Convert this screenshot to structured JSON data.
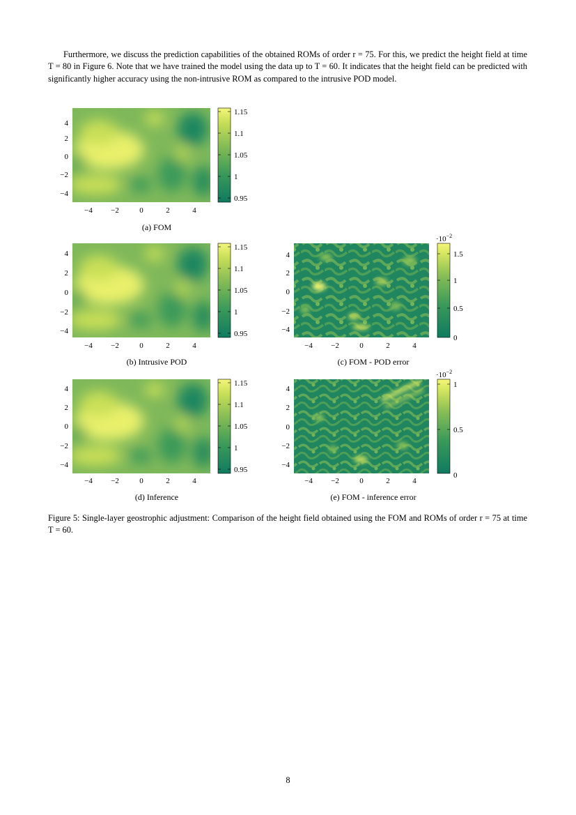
{
  "paragraph": "Furthermore, we discuss the prediction capabilities of the obtained ROMs of order r = 75. For this, we predict the height field at time T = 80 in Figure 6. Note that we have trained the model using the data up to T = 60. It indicates that the height field can be predicted with significantly higher accuracy using the non-intrusive ROM as compared to the intrusive POD model.",
  "colormap": [
    "#0f7a60",
    "#3a9a5a",
    "#86bd55",
    "#c9df57",
    "#f4f67a"
  ],
  "panels": [
    {
      "id": "fom",
      "caption": "(a) FOM",
      "kind": "field",
      "axis_ticks_x": [
        "−4",
        "−2",
        "0",
        "2",
        "4"
      ],
      "axis_ticks_y": [
        "4",
        "2",
        "0",
        "−2",
        "−4"
      ],
      "colorbar_ticks": [
        "1.15",
        "1.1",
        "1.05",
        "1",
        "0.95"
      ],
      "colorbar_range": [
        0.94,
        1.16
      ]
    },
    {
      "id": "intrusive-pod",
      "caption": "(b) Intrusive POD",
      "kind": "field",
      "axis_ticks_x": [
        "−4",
        "−2",
        "0",
        "2",
        "4"
      ],
      "axis_ticks_y": [
        "4",
        "2",
        "0",
        "−2",
        "−4"
      ],
      "colorbar_ticks": [
        "1.15",
        "1.1",
        "1.05",
        "1",
        "0.95"
      ],
      "colorbar_range": [
        0.94,
        1.16
      ]
    },
    {
      "id": "pod-error",
      "caption": "(c) FOM - POD error",
      "kind": "error",
      "scale_label": "·10",
      "scale_exp": "−2",
      "axis_ticks_x": [
        "−4",
        "−2",
        "0",
        "2",
        "4"
      ],
      "axis_ticks_y": [
        "4",
        "2",
        "0",
        "−2",
        "−4"
      ],
      "colorbar_ticks": [
        "1.5",
        "1",
        "0.5",
        "0"
      ],
      "colorbar_range": [
        0,
        1.7
      ]
    },
    {
      "id": "inference",
      "caption": "(d) Inference",
      "kind": "field",
      "axis_ticks_x": [
        "−4",
        "−2",
        "0",
        "2",
        "4"
      ],
      "axis_ticks_y": [
        "4",
        "2",
        "0",
        "−2",
        "−4"
      ],
      "colorbar_ticks": [
        "1.15",
        "1.1",
        "1.05",
        "1",
        "0.95"
      ],
      "colorbar_range": [
        0.94,
        1.16
      ]
    },
    {
      "id": "inference-error",
      "caption": "(e) FOM - inference error",
      "kind": "error",
      "scale_label": "·10",
      "scale_exp": "−2",
      "axis_ticks_x": [
        "−4",
        "−2",
        "0",
        "2",
        "4"
      ],
      "axis_ticks_y": [
        "4",
        "2",
        "0",
        "−2",
        "−4"
      ],
      "colorbar_ticks": [
        "1",
        "0.5",
        "0"
      ],
      "colorbar_range": [
        0,
        1.1
      ]
    }
  ],
  "figure_caption": "Figure 5: Single-layer geostrophic adjustment: Comparison of the height field obtained using the FOM and ROMs of order r = 75 at time T = 60.",
  "page_number": "8"
}
